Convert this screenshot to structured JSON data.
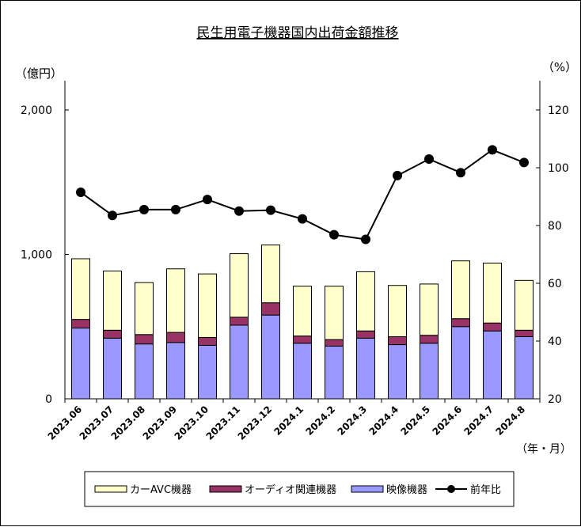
{
  "chart_data": {
    "type": "bar",
    "title": "民生用電子機器国内出荷金額推移",
    "ylabel_left": "（億円）",
    "ylabel_right": "（%）",
    "xlabel": "（年・月）",
    "categories": [
      "2023.06",
      "2023.07",
      "2023.08",
      "2023.09",
      "2023.10",
      "2023.11",
      "2023.12",
      "2024.1",
      "2024.2",
      "2024.3",
      "2024.4",
      "2024.5",
      "2024.6",
      "2024.7",
      "2024.8"
    ],
    "series": [
      {
        "name": "映像機器",
        "kind": "stacked-bar",
        "color": "#9999ff",
        "values": [
          490,
          420,
          380,
          390,
          370,
          510,
          580,
          385,
          365,
          420,
          375,
          385,
          500,
          470,
          430
        ]
      },
      {
        "name": "オーディオ関連機器",
        "kind": "stacked-bar",
        "color": "#993366",
        "values": [
          60,
          55,
          65,
          70,
          55,
          55,
          85,
          50,
          45,
          50,
          55,
          55,
          55,
          55,
          45
        ]
      },
      {
        "name": "カーAVC機器",
        "kind": "stacked-bar",
        "color": "#ffffcc",
        "values": [
          420,
          410,
          360,
          440,
          440,
          440,
          400,
          345,
          370,
          410,
          355,
          355,
          400,
          415,
          345
        ]
      },
      {
        "name": "前年比",
        "kind": "line",
        "axis": "right",
        "color": "#000000",
        "values": [
          91.5,
          83.5,
          85.5,
          85.5,
          89,
          85,
          85.3,
          82.3,
          76.8,
          75.2,
          97.3,
          103,
          98.3,
          106.2,
          101.8
        ]
      }
    ],
    "left_axis": {
      "min": 0,
      "max": 2000,
      "ticks": [
        0,
        1000,
        2000
      ],
      "tick_labels": [
        "0",
        "1,000",
        "2,000"
      ]
    },
    "right_axis": {
      "min": 20,
      "max": 120,
      "ticks": [
        20,
        40,
        60,
        80,
        100,
        120
      ],
      "tick_labels": [
        "20",
        "40",
        "60",
        "80",
        "100",
        "120"
      ]
    },
    "legend": {
      "position": "bottom",
      "items": [
        "カーAVC機器",
        "オーディオ関連機器",
        "映像機器",
        "前年比"
      ]
    },
    "grid": false
  }
}
